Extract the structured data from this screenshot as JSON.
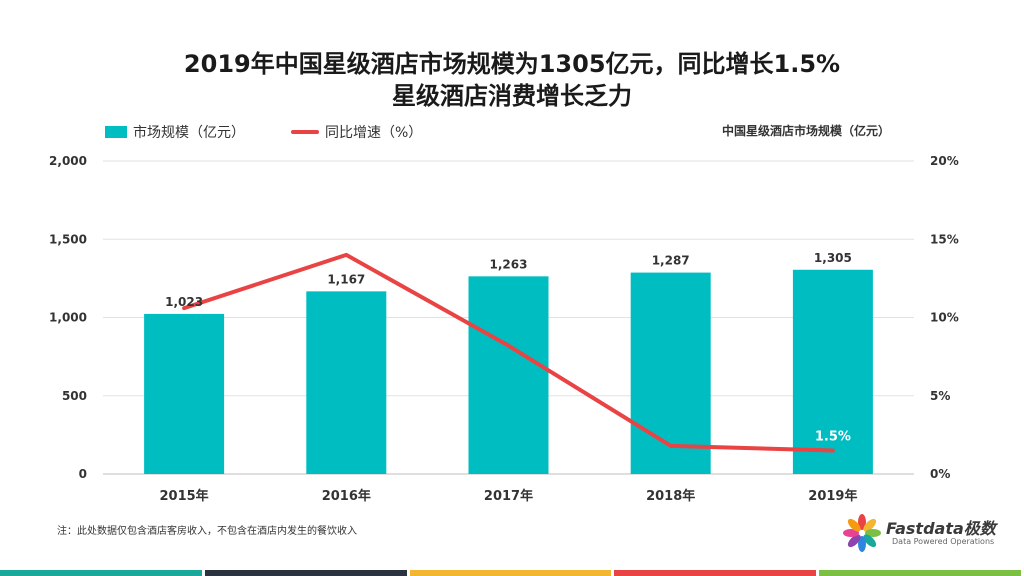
{
  "title_line1": "2019年中国星级酒店市场规模为1305亿元，同比增长1.5%",
  "title_line2": "星级酒店消费增长乏力",
  "legend": {
    "bar_label": "市场规模（亿元）",
    "line_label": "同比增速（%）"
  },
  "right_caption": "中国星级酒店市场规模（亿元）",
  "note": "注：此处数据仅包含酒店客房收入，不包含在酒店内发生的餐饮收入",
  "logo": {
    "brand": "Fastdata极数",
    "tagline": "Data Powered Operations"
  },
  "colors": {
    "bar": "#00BDC2",
    "line": "#E94343",
    "bottom_bar": [
      "#1AA89B",
      "#2B3340",
      "#F2B631",
      "#E94343",
      "#7BC043"
    ]
  },
  "chart_data": {
    "type": "bar",
    "categories": [
      "2015年",
      "2016年",
      "2017年",
      "2018年",
      "2019年"
    ],
    "series": [
      {
        "name": "市场规模（亿元）",
        "type": "bar",
        "axis": "left",
        "values": [
          1023,
          1167,
          1263,
          1287,
          1305
        ],
        "labels": [
          "1,023",
          "1,167",
          "1,263",
          "1,287",
          "1,305"
        ]
      },
      {
        "name": "同比增速（%）",
        "type": "line",
        "axis": "right",
        "values": [
          10.6,
          14.0,
          8.2,
          1.8,
          1.5
        ],
        "labels": [
          "",
          "",
          "",
          "",
          "1.5%"
        ]
      }
    ],
    "y_left": {
      "ylim": [
        0,
        2000
      ],
      "ticks": [
        "0",
        "500",
        "1,000",
        "1,500",
        "2,000"
      ],
      "tick_values": [
        0,
        500,
        1000,
        1500,
        2000
      ]
    },
    "y_right": {
      "ylim": [
        0,
        20
      ],
      "ticks": [
        "0%",
        "5%",
        "10%",
        "15%",
        "20%"
      ],
      "tick_values": [
        0,
        5,
        10,
        15,
        20
      ]
    },
    "grid": true,
    "legend_position": "top-left"
  }
}
